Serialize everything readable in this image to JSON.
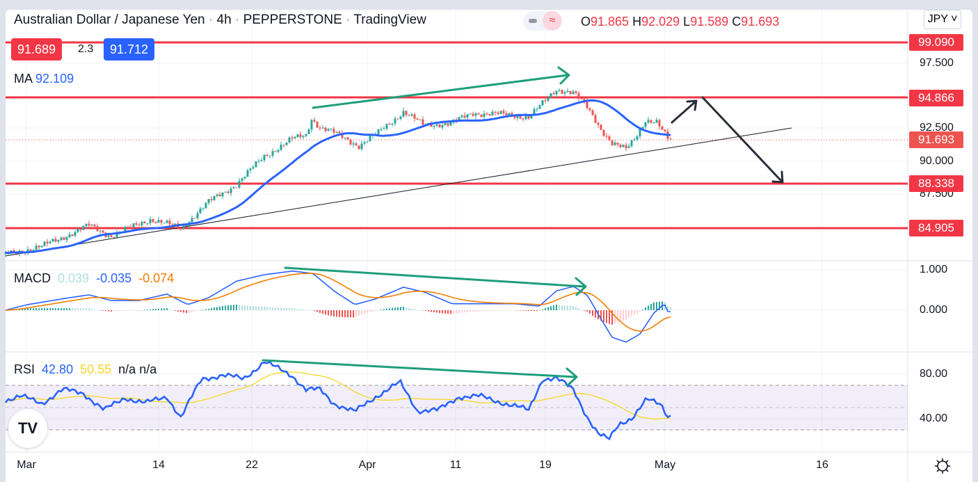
{
  "header": {
    "title": "Australian Dollar / Japanese Yen",
    "interval": "4h",
    "broker": "PEPPERSTONE",
    "platform": "TradingView",
    "sep": "·",
    "ohlc": {
      "o_label": "O",
      "o": "91.865",
      "h_label": "H",
      "h": "92.029",
      "l_label": "L",
      "l": "91.589",
      "c_label": "C",
      "c": "91.693"
    }
  },
  "quote": {
    "bid": "91.689",
    "spread": "2.3",
    "ask": "91.712"
  },
  "ma": {
    "label": "MA",
    "value": "92.109"
  },
  "currency_button": "JPY",
  "macd_legend": {
    "label": "MACD",
    "hist": "0.039",
    "macd": "-0.035",
    "signal": "-0.074"
  },
  "rsi_legend": {
    "label": "RSI",
    "rsi": "42.80",
    "ma": "50.55",
    "na1": "n/a",
    "na2": "n/a"
  },
  "colors": {
    "up": "#26a69a",
    "down": "#ef5350",
    "level": "#f23645",
    "ma": "#2962ff",
    "signal": "#f57c00",
    "annotation": "#1e9e7a"
  },
  "chart_data": {
    "type": "candlestick",
    "title": "Australian Dollar / Japanese Yen · 4h · PEPPERSTONE",
    "price_axis": {
      "ticks": [
        "97.500",
        "92.500",
        "90.000",
        "87.500"
      ],
      "range": [
        82.5,
        100.2
      ]
    },
    "levels": [
      "99.090",
      "94.866",
      "88.338",
      "84.905"
    ],
    "last_price": "91.693",
    "x_ticks": [
      "Mar",
      "14",
      "22",
      "Apr",
      "11",
      "19",
      "May",
      "16"
    ],
    "close_path": [
      [
        0,
        82.9
      ],
      [
        6.5,
        83.5
      ],
      [
        15,
        85.1
      ],
      [
        19,
        84.3
      ],
      [
        26,
        85.6
      ],
      [
        31.5,
        84.9
      ],
      [
        36.5,
        86.9
      ],
      [
        41.5,
        88.25
      ],
      [
        46.5,
        90.4
      ],
      [
        51.5,
        91.7
      ],
      [
        54,
        92.0
      ],
      [
        55,
        93.3
      ],
      [
        56.5,
        92.6
      ],
      [
        59,
        92.2
      ],
      [
        63.5,
        91.2
      ],
      [
        67,
        92.2
      ],
      [
        71.5,
        93.8
      ],
      [
        75,
        92.8
      ],
      [
        80,
        92.9
      ],
      [
        84,
        93.7
      ],
      [
        89,
        93.6
      ],
      [
        94,
        93.4
      ],
      [
        96.5,
        94.4
      ],
      [
        99,
        95.5
      ],
      [
        102,
        95.3
      ],
      [
        104.5,
        94.1
      ],
      [
        107,
        92.5
      ],
      [
        109,
        91.4
      ],
      [
        111.5,
        90.9
      ],
      [
        113,
        91.7
      ],
      [
        115,
        93.2
      ],
      [
        117,
        93.0
      ],
      [
        119,
        91.69
      ]
    ],
    "macd": {
      "ticks": [
        "1.000",
        "0.000"
      ],
      "line_path": [
        [
          0,
          0
        ],
        [
          4,
          0.14
        ],
        [
          11.5,
          0.31
        ],
        [
          15,
          0.38
        ],
        [
          19,
          0.24
        ],
        [
          24,
          0.24
        ],
        [
          29,
          0.4
        ],
        [
          32.75,
          0.14
        ],
        [
          36.5,
          0.31
        ],
        [
          41.5,
          0.72
        ],
        [
          46.5,
          0.88
        ],
        [
          51.5,
          0.97
        ],
        [
          55.25,
          0.91
        ],
        [
          59,
          0.48
        ],
        [
          62.75,
          0.14
        ],
        [
          66.5,
          0.28
        ],
        [
          71.5,
          0.57
        ],
        [
          75.25,
          0.45
        ],
        [
          80.25,
          0.16
        ],
        [
          86.5,
          0.16
        ],
        [
          91.5,
          0.16
        ],
        [
          95.9,
          0.1
        ],
        [
          99,
          0.48
        ],
        [
          102.1,
          0.59
        ],
        [
          104.6,
          0.36
        ],
        [
          107.1,
          -0.24
        ],
        [
          109,
          -0.67
        ],
        [
          111.5,
          -0.79
        ],
        [
          114,
          -0.59
        ],
        [
          116.5,
          -0.07
        ],
        [
          118.4,
          0.16
        ],
        [
          119,
          -0.035
        ]
      ]
    },
    "rsi": {
      "ticks": [
        "80.00",
        "40.00"
      ],
      "bands": [
        70,
        30
      ],
      "line_path": [
        [
          0,
          57
        ],
        [
          2.75,
          60
        ],
        [
          6.5,
          54
        ],
        [
          10.25,
          66
        ],
        [
          14,
          63
        ],
        [
          17.75,
          47.5
        ],
        [
          21.5,
          59
        ],
        [
          25.25,
          54
        ],
        [
          29,
          60
        ],
        [
          31.5,
          41
        ],
        [
          35.25,
          76
        ],
        [
          39,
          79
        ],
        [
          42.75,
          76
        ],
        [
          46.5,
          91
        ],
        [
          49,
          85
        ],
        [
          51.5,
          79
        ],
        [
          54,
          66
        ],
        [
          56.5,
          66
        ],
        [
          59,
          54
        ],
        [
          62.75,
          46
        ],
        [
          66.5,
          60
        ],
        [
          70.9,
          72.5
        ],
        [
          74,
          47.5
        ],
        [
          77.75,
          47.5
        ],
        [
          81.5,
          60
        ],
        [
          85.25,
          60
        ],
        [
          89,
          55
        ],
        [
          94,
          47.5
        ],
        [
          96.5,
          76
        ],
        [
          99,
          76
        ],
        [
          102.1,
          66
        ],
        [
          104.6,
          41
        ],
        [
          106.5,
          26
        ],
        [
          108.4,
          21
        ],
        [
          110.25,
          36
        ],
        [
          112.75,
          41
        ],
        [
          115.25,
          57
        ],
        [
          117.75,
          54
        ],
        [
          119,
          42.8
        ]
      ]
    }
  }
}
